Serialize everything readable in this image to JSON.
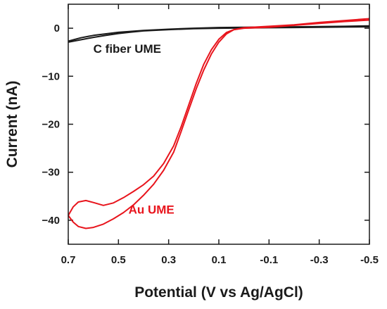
{
  "chart_data": {
    "type": "line",
    "title": "",
    "xlabel": "Potential (V vs Ag/AgCl)",
    "ylabel": "Current (nA)",
    "xlim": [
      0.7,
      -0.5
    ],
    "ylim": [
      -45,
      5
    ],
    "x_reversed": true,
    "grid": false,
    "legend": "none",
    "x_ticks": [
      0.7,
      0.5,
      0.3,
      0.1,
      -0.1,
      -0.3,
      -0.5
    ],
    "x_tick_labels": [
      "0.7",
      "0.5",
      "0.3",
      "0.1",
      "-0.1",
      "-0.3",
      "-0.5"
    ],
    "y_ticks": [
      0,
      -10,
      -20,
      -30,
      -40
    ],
    "y_tick_labels": [
      "0",
      "−10",
      "−20",
      "−30",
      "−40"
    ],
    "series": [
      {
        "name": "C fiber UME",
        "color": "#1a1a1a",
        "label_at": [
          0.6,
          -5.1
        ],
        "forward": [
          [
            0.7,
            -2.9
          ],
          [
            0.65,
            -2.4
          ],
          [
            0.6,
            -1.9
          ],
          [
            0.55,
            -1.5
          ],
          [
            0.5,
            -1.1
          ],
          [
            0.45,
            -0.8
          ],
          [
            0.4,
            -0.55
          ],
          [
            0.3,
            -0.3
          ],
          [
            0.2,
            -0.1
          ],
          [
            0.1,
            0.0
          ],
          [
            0.0,
            0.05
          ],
          [
            -0.1,
            0.1
          ],
          [
            -0.2,
            0.15
          ],
          [
            -0.3,
            0.2
          ],
          [
            -0.4,
            0.25
          ],
          [
            -0.5,
            0.3
          ]
        ],
        "reverse": [
          [
            -0.5,
            0.5
          ],
          [
            -0.4,
            0.4
          ],
          [
            -0.3,
            0.35
          ],
          [
            -0.2,
            0.3
          ],
          [
            -0.1,
            0.25
          ],
          [
            0.0,
            0.2
          ],
          [
            0.1,
            0.15
          ],
          [
            0.2,
            0.0
          ],
          [
            0.3,
            -0.2
          ],
          [
            0.4,
            -0.45
          ],
          [
            0.5,
            -0.85
          ],
          [
            0.6,
            -1.5
          ],
          [
            0.65,
            -2.0
          ],
          [
            0.7,
            -2.7
          ]
        ]
      },
      {
        "name": "Au UME",
        "color": "#e8141c",
        "label_at": [
          0.46,
          -38.6
        ],
        "forward": [
          [
            0.7,
            -39.0
          ],
          [
            0.68,
            -37.2
          ],
          [
            0.66,
            -36.2
          ],
          [
            0.63,
            -35.9
          ],
          [
            0.6,
            -36.3
          ],
          [
            0.56,
            -36.9
          ],
          [
            0.52,
            -36.4
          ],
          [
            0.48,
            -35.3
          ],
          [
            0.44,
            -34.0
          ],
          [
            0.4,
            -32.6
          ],
          [
            0.36,
            -30.8
          ],
          [
            0.32,
            -28.2
          ],
          [
            0.28,
            -24.5
          ],
          [
            0.25,
            -20.5
          ],
          [
            0.22,
            -16.0
          ],
          [
            0.19,
            -11.5
          ],
          [
            0.16,
            -7.5
          ],
          [
            0.13,
            -4.5
          ],
          [
            0.1,
            -2.3
          ],
          [
            0.07,
            -0.9
          ],
          [
            0.04,
            -0.3
          ],
          [
            0.0,
            0.0
          ],
          [
            -0.1,
            0.2
          ],
          [
            -0.2,
            0.6
          ],
          [
            -0.3,
            1.0
          ],
          [
            -0.4,
            1.4
          ],
          [
            -0.5,
            1.7
          ]
        ],
        "reverse": [
          [
            -0.5,
            2.0
          ],
          [
            -0.4,
            1.6
          ],
          [
            -0.3,
            1.2
          ],
          [
            -0.2,
            0.7
          ],
          [
            -0.1,
            0.4
          ],
          [
            0.0,
            0.1
          ],
          [
            0.04,
            -0.3
          ],
          [
            0.07,
            -1.2
          ],
          [
            0.1,
            -2.9
          ],
          [
            0.13,
            -5.4
          ],
          [
            0.16,
            -8.7
          ],
          [
            0.19,
            -12.6
          ],
          [
            0.22,
            -17.0
          ],
          [
            0.25,
            -21.5
          ],
          [
            0.28,
            -25.8
          ],
          [
            0.32,
            -29.6
          ],
          [
            0.36,
            -32.5
          ],
          [
            0.4,
            -34.8
          ],
          [
            0.44,
            -36.8
          ],
          [
            0.48,
            -38.4
          ],
          [
            0.52,
            -39.7
          ],
          [
            0.56,
            -40.8
          ],
          [
            0.6,
            -41.5
          ],
          [
            0.63,
            -41.7
          ],
          [
            0.66,
            -41.3
          ],
          [
            0.68,
            -40.4
          ],
          [
            0.7,
            -39.0
          ]
        ]
      }
    ]
  }
}
